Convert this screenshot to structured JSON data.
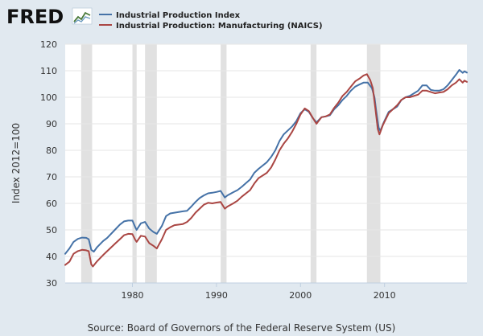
{
  "header": {
    "logo_text": "FRED",
    "logo_icon": "fred-chart-icon"
  },
  "footer": {
    "source": "Source: Board of Governors of the Federal Reserve System (US)"
  },
  "colors": {
    "background": "#e1e9f0",
    "plot_background": "#ffffff",
    "recession_shading": "#e1e1e1",
    "series_1": "#4572a7",
    "series_2": "#aa4643"
  },
  "chart_data": {
    "type": "line",
    "title": "",
    "xlabel": "",
    "ylabel": "Index 2012=100",
    "xlim": [
      1972.0,
      2019.8
    ],
    "ylim": [
      30,
      120
    ],
    "y_ticks": [
      30,
      40,
      50,
      60,
      70,
      80,
      90,
      100,
      110,
      120
    ],
    "x_ticks": [
      1980,
      1990,
      2000,
      2010
    ],
    "x_tick_labels": [
      "1980",
      "1990",
      "2000",
      "2010"
    ],
    "grid": "horizontal",
    "legend_position": "top-left",
    "recessions": [
      [
        1973.9,
        1975.2
      ],
      [
        1980.0,
        1980.5
      ],
      [
        1981.5,
        1982.9
      ],
      [
        1990.5,
        1991.2
      ],
      [
        2001.2,
        2001.9
      ],
      [
        2007.9,
        2009.5
      ]
    ],
    "series": [
      {
        "name": "Industrial Production Index",
        "color": "#4572a7",
        "points": [
          [
            1972.0,
            41.0
          ],
          [
            1972.5,
            43.0
          ],
          [
            1973.0,
            45.5
          ],
          [
            1973.5,
            46.6
          ],
          [
            1974.0,
            47.1
          ],
          [
            1974.5,
            47.0
          ],
          [
            1974.8,
            46.5
          ],
          [
            1975.1,
            42.5
          ],
          [
            1975.4,
            41.8
          ],
          [
            1975.8,
            43.5
          ],
          [
            1976.5,
            45.8
          ],
          [
            1977.0,
            47.0
          ],
          [
            1978.0,
            50.3
          ],
          [
            1978.5,
            52.0
          ],
          [
            1979.0,
            53.2
          ],
          [
            1979.5,
            53.5
          ],
          [
            1980.0,
            53.5
          ],
          [
            1980.3,
            51.3
          ],
          [
            1980.5,
            50.0
          ],
          [
            1981.0,
            52.5
          ],
          [
            1981.5,
            53.0
          ],
          [
            1982.0,
            50.5
          ],
          [
            1982.5,
            49.2
          ],
          [
            1982.9,
            48.5
          ],
          [
            1983.5,
            51.5
          ],
          [
            1984.0,
            55.2
          ],
          [
            1984.5,
            56.2
          ],
          [
            1985.0,
            56.5
          ],
          [
            1986.0,
            57.0
          ],
          [
            1986.5,
            57.2
          ],
          [
            1987.0,
            58.8
          ],
          [
            1987.5,
            60.5
          ],
          [
            1988.0,
            62.0
          ],
          [
            1988.5,
            63.0
          ],
          [
            1989.0,
            63.8
          ],
          [
            1989.5,
            64.0
          ],
          [
            1990.0,
            64.3
          ],
          [
            1990.5,
            64.7
          ],
          [
            1991.0,
            62.2
          ],
          [
            1991.3,
            63.0
          ],
          [
            1992.0,
            64.2
          ],
          [
            1992.5,
            65.0
          ],
          [
            1993.0,
            66.2
          ],
          [
            1994.0,
            69.0
          ],
          [
            1994.5,
            71.5
          ],
          [
            1995.0,
            73.0
          ],
          [
            1996.0,
            75.5
          ],
          [
            1996.5,
            77.5
          ],
          [
            1997.0,
            80.0
          ],
          [
            1997.5,
            83.5
          ],
          [
            1998.0,
            86.0
          ],
          [
            1998.5,
            87.5
          ],
          [
            1999.0,
            89.0
          ],
          [
            1999.5,
            91.0
          ],
          [
            2000.0,
            94.0
          ],
          [
            2000.5,
            95.5
          ],
          [
            2001.0,
            94.5
          ],
          [
            2001.5,
            92.0
          ],
          [
            2001.9,
            90.5
          ],
          [
            2002.5,
            92.5
          ],
          [
            2003.0,
            92.8
          ],
          [
            2003.5,
            93.2
          ],
          [
            2004.0,
            95.5
          ],
          [
            2004.5,
            97.0
          ],
          [
            2005.0,
            99.0
          ],
          [
            2005.5,
            100.5
          ],
          [
            2006.0,
            102.5
          ],
          [
            2006.5,
            104.0
          ],
          [
            2007.0,
            104.8
          ],
          [
            2007.5,
            105.5
          ],
          [
            2008.0,
            105.5
          ],
          [
            2008.5,
            103.5
          ],
          [
            2008.8,
            100.0
          ],
          [
            2009.0,
            95.0
          ],
          [
            2009.3,
            88.5
          ],
          [
            2009.5,
            87.3
          ],
          [
            2009.9,
            90.5
          ],
          [
            2010.5,
            94.5
          ],
          [
            2011.0,
            95.5
          ],
          [
            2011.5,
            96.5
          ],
          [
            2012.0,
            99.0
          ],
          [
            2012.5,
            100.0
          ],
          [
            2013.0,
            100.5
          ],
          [
            2013.5,
            101.5
          ],
          [
            2014.0,
            102.5
          ],
          [
            2014.5,
            104.5
          ],
          [
            2015.0,
            104.5
          ],
          [
            2015.5,
            102.8
          ],
          [
            2016.0,
            102.5
          ],
          [
            2016.5,
            102.5
          ],
          [
            2017.0,
            103.0
          ],
          [
            2017.5,
            104.5
          ],
          [
            2018.0,
            106.5
          ],
          [
            2018.5,
            108.5
          ],
          [
            2018.9,
            110.3
          ],
          [
            2019.3,
            109.2
          ],
          [
            2019.5,
            109.8
          ],
          [
            2019.8,
            109.3
          ]
        ]
      },
      {
        "name": "Industrial Production: Manufacturing (NAICS)",
        "color": "#aa4643",
        "points": [
          [
            1972.0,
            36.8
          ],
          [
            1972.5,
            38.0
          ],
          [
            1973.0,
            41.0
          ],
          [
            1973.5,
            42.0
          ],
          [
            1974.0,
            42.5
          ],
          [
            1974.5,
            42.3
          ],
          [
            1974.8,
            42.0
          ],
          [
            1975.1,
            37.0
          ],
          [
            1975.3,
            36.2
          ],
          [
            1975.8,
            38.2
          ],
          [
            1976.5,
            40.5
          ],
          [
            1977.0,
            42.0
          ],
          [
            1978.0,
            45.0
          ],
          [
            1978.5,
            46.5
          ],
          [
            1979.0,
            48.0
          ],
          [
            1979.5,
            48.5
          ],
          [
            1980.0,
            48.4
          ],
          [
            1980.3,
            46.5
          ],
          [
            1980.5,
            45.5
          ],
          [
            1981.0,
            47.8
          ],
          [
            1981.5,
            47.5
          ],
          [
            1982.0,
            45.0
          ],
          [
            1982.5,
            44.0
          ],
          [
            1982.9,
            43.0
          ],
          [
            1983.5,
            46.5
          ],
          [
            1984.0,
            50.0
          ],
          [
            1984.5,
            51.0
          ],
          [
            1985.0,
            51.8
          ],
          [
            1986.0,
            52.2
          ],
          [
            1986.5,
            53.0
          ],
          [
            1987.0,
            54.5
          ],
          [
            1987.5,
            56.5
          ],
          [
            1988.0,
            58.0
          ],
          [
            1988.5,
            59.5
          ],
          [
            1989.0,
            60.2
          ],
          [
            1989.5,
            60.0
          ],
          [
            1990.0,
            60.3
          ],
          [
            1990.5,
            60.5
          ],
          [
            1991.0,
            58.0
          ],
          [
            1991.3,
            58.8
          ],
          [
            1992.0,
            60.0
          ],
          [
            1992.5,
            61.0
          ],
          [
            1993.0,
            62.5
          ],
          [
            1994.0,
            65.0
          ],
          [
            1994.5,
            67.5
          ],
          [
            1995.0,
            69.5
          ],
          [
            1996.0,
            71.5
          ],
          [
            1996.5,
            73.5
          ],
          [
            1997.0,
            76.5
          ],
          [
            1997.5,
            80.0
          ],
          [
            1998.0,
            82.5
          ],
          [
            1998.5,
            84.5
          ],
          [
            1999.0,
            87.0
          ],
          [
            1999.5,
            90.0
          ],
          [
            2000.0,
            93.5
          ],
          [
            2000.5,
            95.8
          ],
          [
            2001.0,
            94.8
          ],
          [
            2001.5,
            92.0
          ],
          [
            2001.9,
            90.0
          ],
          [
            2002.5,
            92.5
          ],
          [
            2003.0,
            92.8
          ],
          [
            2003.5,
            93.5
          ],
          [
            2004.0,
            96.0
          ],
          [
            2004.5,
            98.0
          ],
          [
            2005.0,
            100.5
          ],
          [
            2005.5,
            102.0
          ],
          [
            2006.0,
            104.0
          ],
          [
            2006.5,
            106.0
          ],
          [
            2007.0,
            107.0
          ],
          [
            2007.5,
            108.2
          ],
          [
            2007.9,
            108.7
          ],
          [
            2008.3,
            106.5
          ],
          [
            2008.6,
            103.5
          ],
          [
            2008.9,
            96.0
          ],
          [
            2009.2,
            88.0
          ],
          [
            2009.4,
            86.0
          ],
          [
            2009.8,
            89.5
          ],
          [
            2010.5,
            94.0
          ],
          [
            2011.0,
            95.5
          ],
          [
            2011.5,
            97.0
          ],
          [
            2012.0,
            99.0
          ],
          [
            2012.5,
            100.0
          ],
          [
            2013.0,
            100.0
          ],
          [
            2013.5,
            100.5
          ],
          [
            2014.0,
            101.0
          ],
          [
            2014.5,
            102.5
          ],
          [
            2015.0,
            102.5
          ],
          [
            2015.5,
            102.0
          ],
          [
            2016.0,
            101.5
          ],
          [
            2016.5,
            101.8
          ],
          [
            2017.0,
            102.0
          ],
          [
            2017.5,
            103.0
          ],
          [
            2018.0,
            104.5
          ],
          [
            2018.5,
            105.5
          ],
          [
            2018.9,
            106.8
          ],
          [
            2019.3,
            105.5
          ],
          [
            2019.5,
            106.3
          ],
          [
            2019.8,
            105.8
          ]
        ]
      }
    ]
  }
}
